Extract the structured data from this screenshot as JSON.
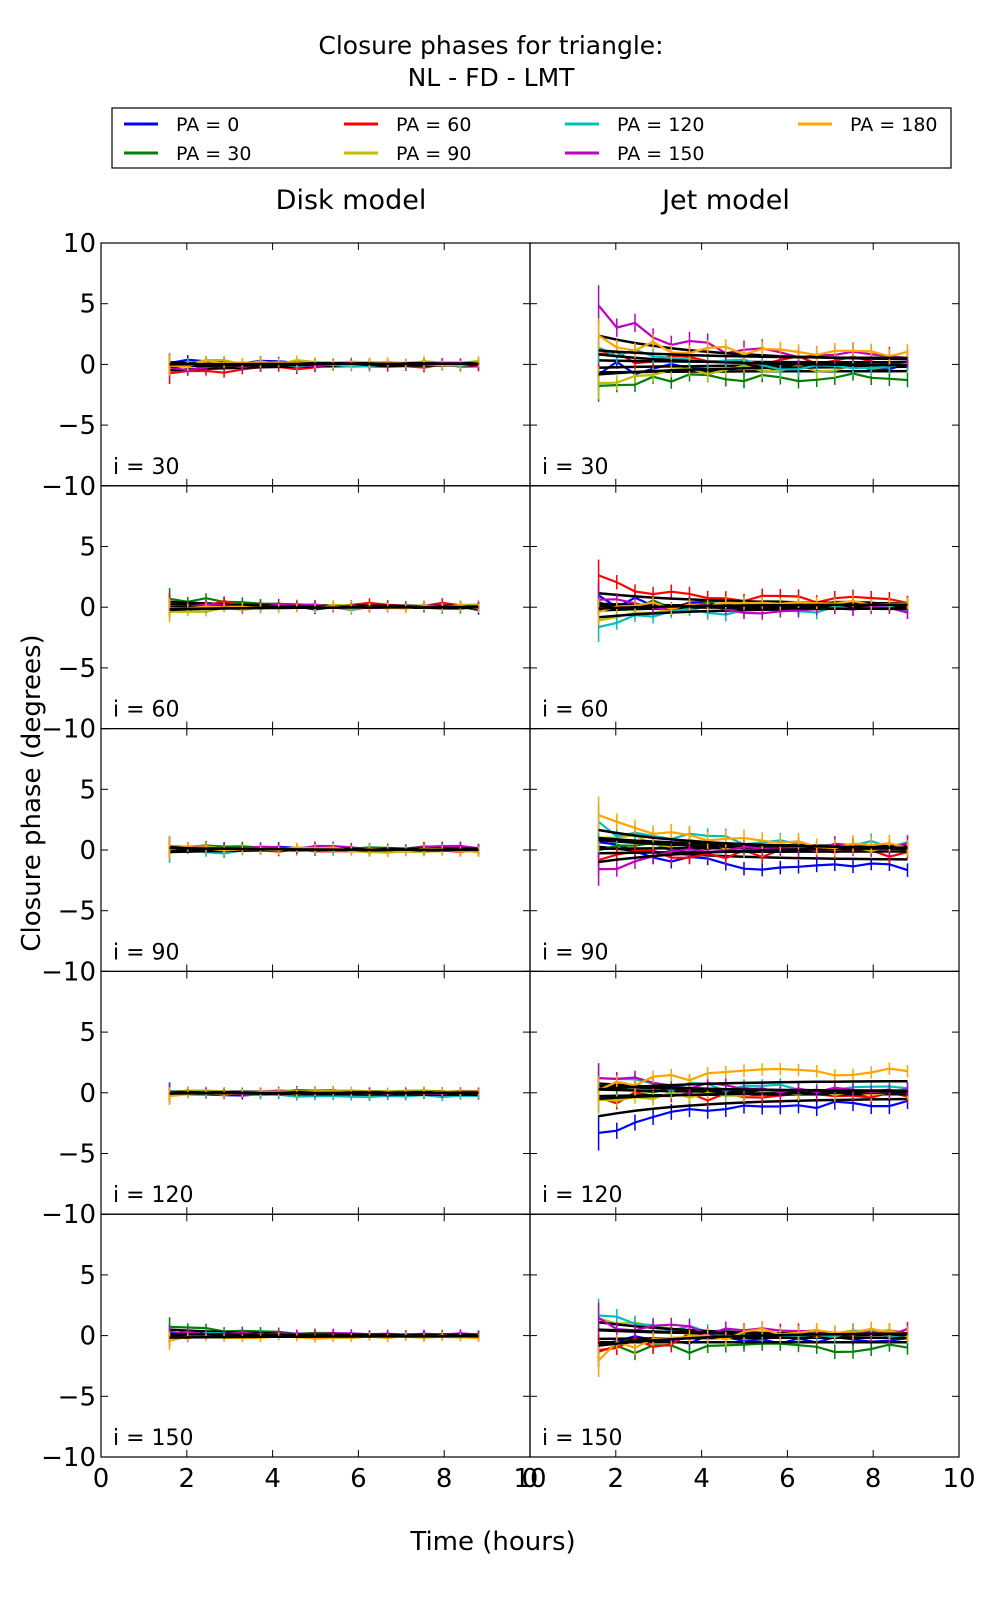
{
  "chart_data": {
    "type": "line",
    "title_line1": "Closure phases for triangle:",
    "title_line2": "NL - FD - LMT",
    "column_titles": [
      "Disk model",
      "Jet model"
    ],
    "xlabel": "Time (hours)",
    "ylabel": "Closure phase (degrees)",
    "xlim": [
      0,
      10
    ],
    "ylim": [
      -10,
      10
    ],
    "xticks": [
      0,
      2,
      4,
      6,
      8,
      10
    ],
    "yticks": [
      -10,
      -5,
      0,
      5,
      10
    ],
    "time_range": [
      1.6,
      8.8
    ],
    "legend": [
      {
        "label": "PA = 0",
        "color": "#0000ff"
      },
      {
        "label": "PA = 30",
        "color": "#008000"
      },
      {
        "label": "PA = 60",
        "color": "#ff0000"
      },
      {
        "label": "PA = 90",
        "color": "#bfbf00"
      },
      {
        "label": "PA = 120",
        "color": "#00bfbf"
      },
      {
        "label": "PA = 150",
        "color": "#bf00bf"
      },
      {
        "label": "PA = 180",
        "color": "#ffa500"
      }
    ],
    "model_line_color": "#000000",
    "panel_labels": [
      "i = 30",
      "i = 60",
      "i = 90",
      "i = 120",
      "i = 150"
    ],
    "disk_model": [
      {
        "inclination": "i = 30",
        "start_values": [
          0.3,
          -0.2,
          -0.9,
          0.1,
          0.2,
          -0.3,
          0.0
        ],
        "end_values": [
          0.1,
          0.0,
          -0.1,
          0.2,
          -0.1,
          0.0,
          0.1
        ],
        "noise": 0.15
      },
      {
        "inclination": "i = 60",
        "start_values": [
          0.3,
          0.8,
          0.4,
          -0.4,
          0.1,
          0.0,
          -0.3
        ],
        "end_values": [
          -0.1,
          0.0,
          0.2,
          0.1,
          -0.1,
          0.1,
          0.0
        ],
        "noise": 0.15
      },
      {
        "inclination": "i = 90",
        "start_values": [
          0.2,
          0.1,
          -0.1,
          0.4,
          -0.3,
          0.0,
          0.3
        ],
        "end_values": [
          0.1,
          0.2,
          0.0,
          -0.1,
          0.1,
          0.2,
          0.0
        ],
        "noise": 0.15
      },
      {
        "inclination": "i = 120",
        "start_values": [
          -0.2,
          0.2,
          0.0,
          0.1,
          0.1,
          0.0,
          -0.1
        ],
        "end_values": [
          -0.2,
          0.1,
          0.0,
          0.1,
          -0.3,
          0.0,
          0.0
        ],
        "noise": 0.1
      },
      {
        "inclination": "i = 150",
        "start_values": [
          0.2,
          0.9,
          -0.1,
          0.0,
          0.1,
          0.2,
          -0.3
        ],
        "end_values": [
          0.0,
          0.0,
          0.1,
          -0.1,
          0.0,
          0.1,
          -0.1
        ],
        "noise": 0.1
      }
    ],
    "jet_model": [
      {
        "inclination": "i = 30",
        "start_values": [
          -0.5,
          -1.2,
          0.6,
          -1.5,
          1.5,
          4.3,
          2.1
        ],
        "end_values": [
          -0.1,
          -1.0,
          0.3,
          -0.3,
          -0.2,
          0.6,
          0.9
        ],
        "noise": 0.35
      },
      {
        "inclination": "i = 60",
        "start_values": [
          0.5,
          0.2,
          2.1,
          -0.5,
          -1.5,
          0.5,
          -0.2
        ],
        "end_values": [
          0.1,
          0.3,
          0.5,
          0.2,
          -0.1,
          -0.3,
          0.4
        ],
        "noise": 0.3
      },
      {
        "inclination": "i = 90",
        "start_values": [
          0.5,
          0.2,
          -0.5,
          1.5,
          1.8,
          -1.8,
          3.0
        ],
        "end_values": [
          -1.5,
          0.3,
          -0.2,
          0.1,
          0.5,
          0.4,
          0.2
        ],
        "noise": 0.35
      },
      {
        "inclination": "i = 120",
        "start_values": [
          -3.5,
          0.5,
          -0.5,
          -0.9,
          1.0,
          1.4,
          0.5
        ],
        "end_values": [
          -0.8,
          0.0,
          -0.2,
          0.1,
          0.3,
          0.2,
          1.8
        ],
        "noise": 0.3
      },
      {
        "inclination": "i = 150",
        "start_values": [
          -0.5,
          -1.0,
          -1.2,
          0.8,
          2.0,
          0.9,
          -1.5
        ],
        "end_values": [
          -0.3,
          -1.0,
          0.2,
          0.1,
          0.0,
          0.2,
          0.4
        ],
        "noise": 0.35
      }
    ]
  }
}
